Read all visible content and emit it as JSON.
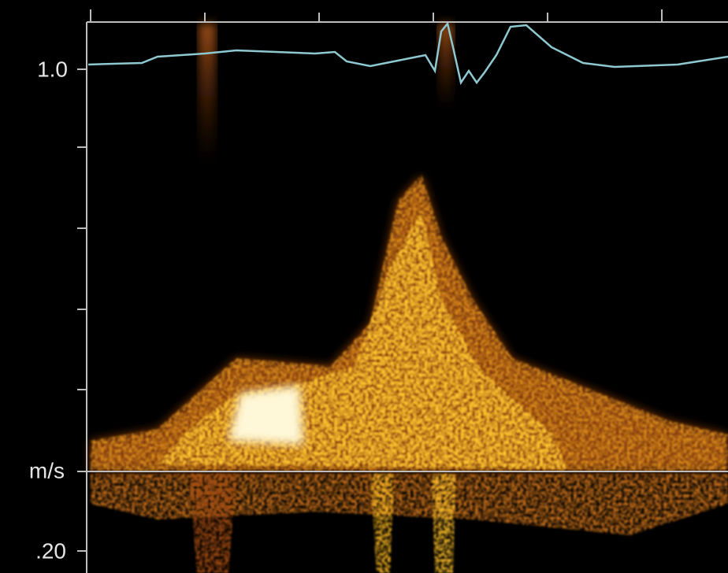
{
  "axis_labels": {
    "top": "1.0",
    "unit": "m/s",
    "bottom": ".20"
  }
}
